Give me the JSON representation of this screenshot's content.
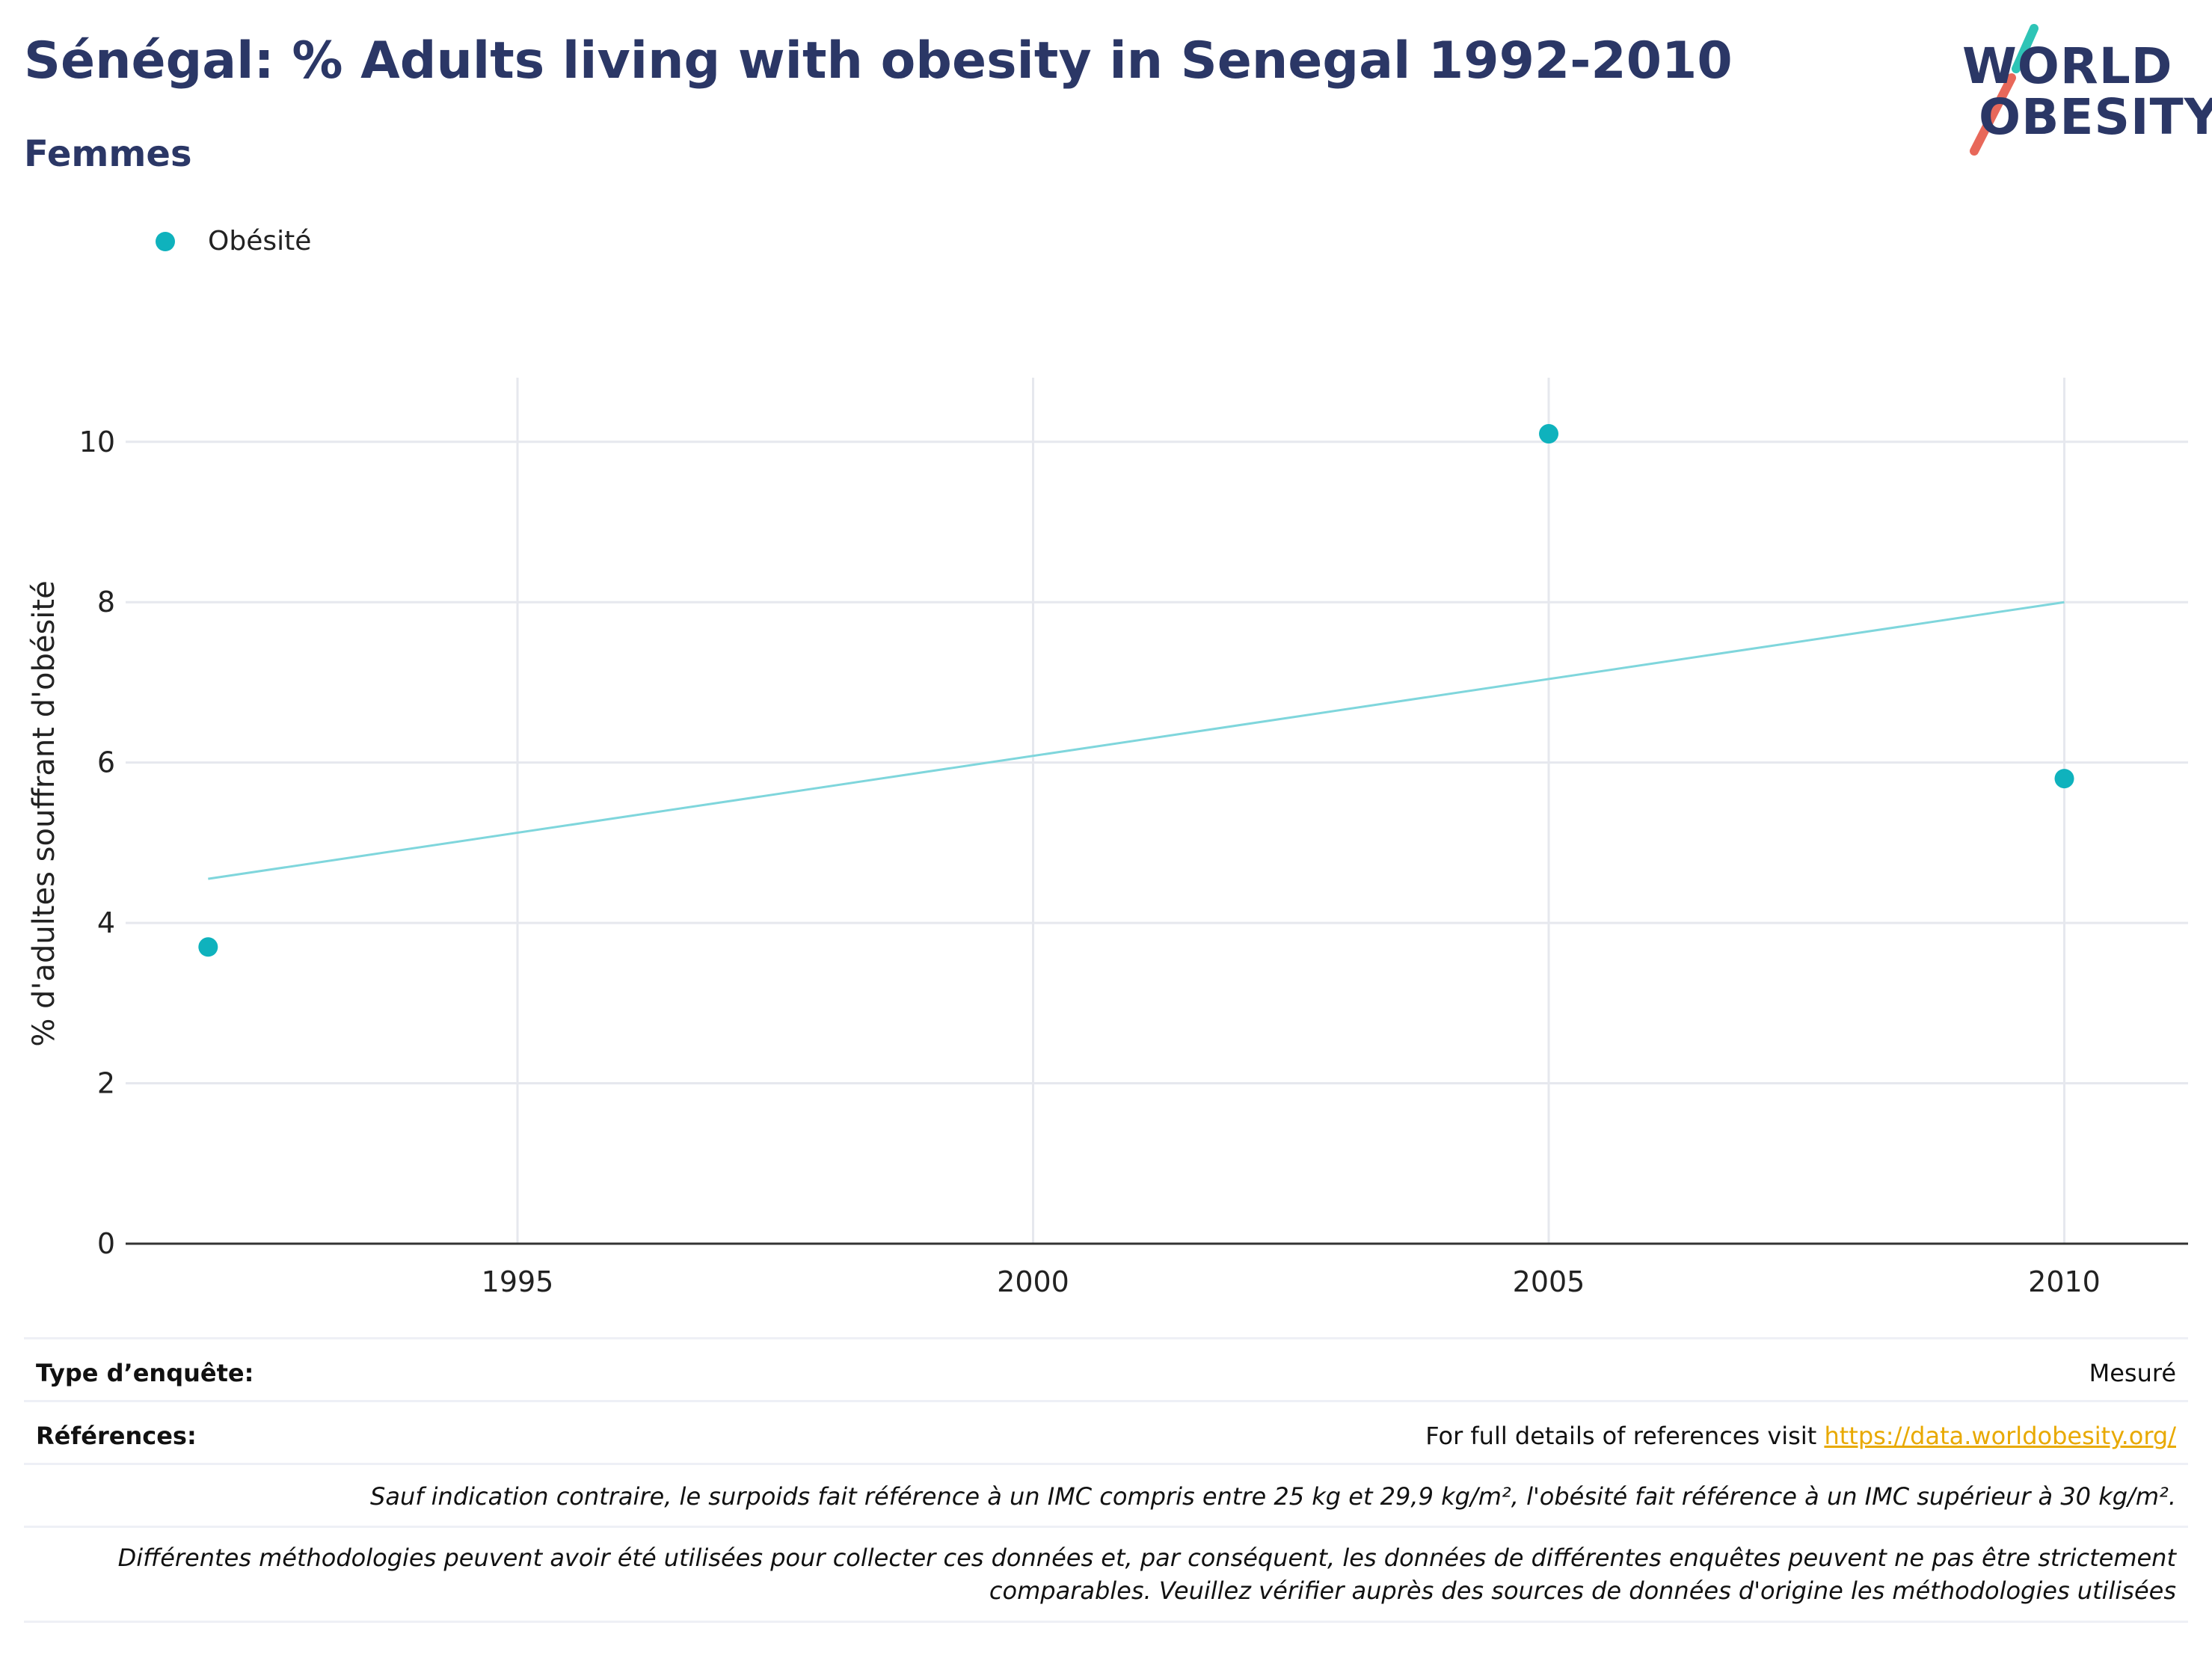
{
  "header": {
    "title": "Sénégal: % Adults living with obesity in Senegal 1992-2010",
    "subtitle": "Femmes"
  },
  "logo": {
    "line1": "WORLD",
    "line2": "OBESITY"
  },
  "colors": {
    "title": "#2b3766",
    "series": "#0fb2bd",
    "trend": "#7fd6dc",
    "link": "#e8a900",
    "logo_teal": "#2ec4b6",
    "logo_coral": "#e8685a"
  },
  "chart_data": {
    "type": "scatter",
    "ylabel": "% d'adultes souffrant d'obésité",
    "xlabel": "",
    "xlim": [
      1991.2,
      2011.2
    ],
    "ylim": [
      0,
      10.8
    ],
    "x_ticks": [
      1995,
      2000,
      2005,
      2010
    ],
    "y_ticks": [
      0,
      2,
      4,
      6,
      8,
      10
    ],
    "grid": true,
    "legend_position": "top-left",
    "series": [
      {
        "name": "Obésité",
        "x": [
          1992,
          2005,
          2010
        ],
        "y": [
          3.7,
          10.1,
          5.8
        ]
      }
    ],
    "trendline": {
      "x": [
        1992,
        2010
      ],
      "y": [
        4.55,
        8.0
      ]
    }
  },
  "footer": {
    "survey_type_label": "Type d’enquête:",
    "survey_type_value": "Mesuré",
    "references_label": "Références:",
    "references_text": "For full details of references visit ",
    "references_link": "https://data.worldobesity.org/",
    "note1": "Sauf indication contraire, le surpoids fait référence à un IMC compris entre 25 kg et 29,9 kg/m², l'obésité fait référence à un IMC supérieur à 30 kg/m².",
    "note2_line1": "Différentes méthodologies peuvent avoir été utilisées pour collecter ces données et, par conséquent, les données de différentes enquêtes peuvent ne pas être strictement",
    "note2_line2": "comparables. Veuillez vérifier auprès des sources de données d'origine les méthodologies utilisées"
  }
}
